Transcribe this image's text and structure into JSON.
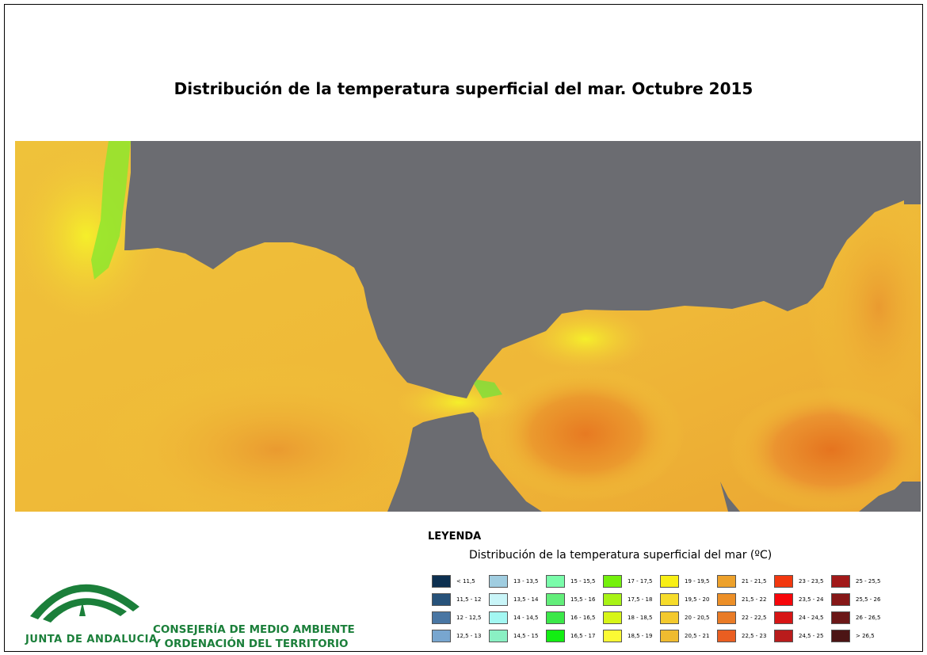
{
  "title": "Distribución de la temperatura superficial del mar. Octubre 2015",
  "legend": {
    "heading": "LEYENDA",
    "subtitle": "Distribución de la temperatura superficial del mar (ºC)",
    "classes": [
      {
        "label": "< 11,5",
        "color": "#0d3050"
      },
      {
        "label": "11,5 - 12",
        "color": "#27527a"
      },
      {
        "label": "12 - 12,5",
        "color": "#4976a3"
      },
      {
        "label": "12,5 - 13",
        "color": "#78a6cf"
      },
      {
        "label": "13 - 13,5",
        "color": "#a0cde0"
      },
      {
        "label": "13,5 - 14",
        "color": "#c9f5f8"
      },
      {
        "label": "14 - 14,5",
        "color": "#a3f7f2"
      },
      {
        "label": "14,5 - 15",
        "color": "#8af0c3"
      },
      {
        "label": "15 - 15,5",
        "color": "#7afcaa"
      },
      {
        "label": "15,5 - 16",
        "color": "#62ee7a"
      },
      {
        "label": "16 - 16,5",
        "color": "#3be849"
      },
      {
        "label": "16,5 - 17",
        "color": "#12ee12"
      },
      {
        "label": "17 - 17,5",
        "color": "#74f00c"
      },
      {
        "label": "17,5 - 18",
        "color": "#a8f315"
      },
      {
        "label": "18 - 18,5",
        "color": "#d7f517"
      },
      {
        "label": "18,5 - 19",
        "color": "#fbfa34"
      },
      {
        "label": "19 - 19,5",
        "color": "#f8ef15"
      },
      {
        "label": "19,5 - 20",
        "color": "#f6dc2a"
      },
      {
        "label": "20 - 20,5",
        "color": "#f3c92d"
      },
      {
        "label": "20,5 - 21",
        "color": "#efbb30"
      },
      {
        "label": "21 - 21,5",
        "color": "#eda12b"
      },
      {
        "label": "21,5 - 22",
        "color": "#ec8f27"
      },
      {
        "label": "22 - 22,5",
        "color": "#e97b26"
      },
      {
        "label": "22,5 - 23",
        "color": "#ea5e21"
      },
      {
        "label": "23 - 23,5",
        "color": "#f2380f"
      },
      {
        "label": "23,5 - 24",
        "color": "#f7060a"
      },
      {
        "label": "24 - 24,5",
        "color": "#d71515"
      },
      {
        "label": "24,5 - 25",
        "color": "#b91c1c"
      },
      {
        "label": "25 - 25,5",
        "color": "#a11919"
      },
      {
        "label": "25,5 - 26",
        "color": "#861717"
      },
      {
        "label": "26 - 26,5",
        "color": "#6b1717"
      },
      {
        "label": "> 26,5",
        "color": "#4c1515"
      }
    ]
  },
  "branding": {
    "logo_text": "JUNTA DE ANDALUCIA",
    "department_line1": "CONSEJERÍA DE MEDIO AMBIENTE",
    "department_line2": "Y ORDENACIÓN DEL TERRITORIO",
    "logo_color": "#1b7f3a"
  },
  "map_colors": {
    "land": "#6b6c71",
    "sea_base": "#f2c93a",
    "warm": "#ea8f2c",
    "cool": "#f5ef2a",
    "coldest": "#4be33c"
  }
}
